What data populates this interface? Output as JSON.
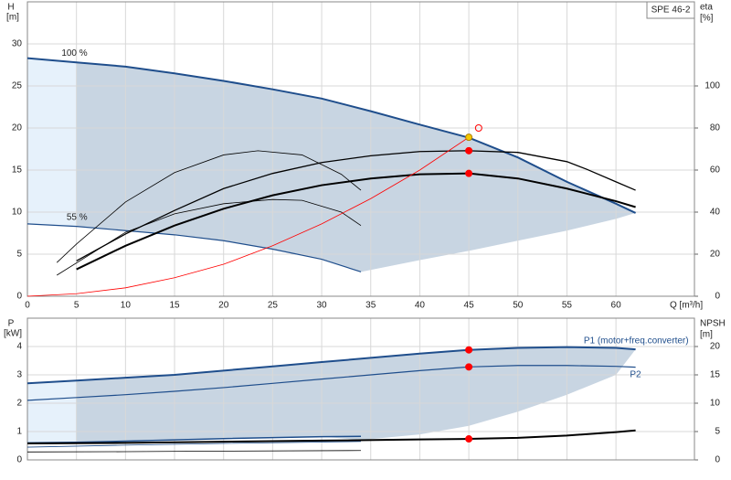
{
  "chart_data": [
    {
      "type": "line",
      "y_label": "H",
      "y_unit": "[m]",
      "y2_label": "eta",
      "y2_unit": "[%]",
      "x_label": "Q [m³/h]",
      "badge": "SPE 46-2",
      "xlim": [
        0,
        68
      ],
      "xticks": [
        0,
        5,
        10,
        15,
        20,
        25,
        30,
        35,
        40,
        45,
        50,
        55,
        60
      ],
      "xtick_labels": true,
      "ylim": [
        0,
        35
      ],
      "yticks": [
        0,
        5,
        10,
        15,
        20,
        25,
        30
      ],
      "y2lim": [
        0,
        140
      ],
      "y2ticks": [
        0,
        20,
        40,
        60,
        80,
        100
      ],
      "grid": true,
      "label_side": "start",
      "areas": [
        {
          "color": "#e6f1fb",
          "x": [
            0,
            5,
            5,
            0
          ],
          "values": [
            28.3,
            27.8,
            8.3,
            8.6
          ]
        },
        {
          "color": "#c8d5e2",
          "x": [
            5,
            10,
            15,
            20,
            25,
            30,
            35,
            40,
            45,
            50,
            55,
            60,
            62,
            60,
            55,
            50,
            45,
            40,
            34,
            30,
            25,
            20,
            15,
            10,
            5
          ],
          "values": [
            27.8,
            27.3,
            26.5,
            25.6,
            24.6,
            23.5,
            22.0,
            20.4,
            18.85,
            16.5,
            13.6,
            11.0,
            9.9,
            9.2,
            7.8,
            6.6,
            5.4,
            4.3,
            2.9,
            4.4,
            5.6,
            6.6,
            7.3,
            7.8,
            8.3
          ]
        }
      ],
      "series": [
        {
          "name": "100 %",
          "color": "#1f4e8c",
          "width": 2,
          "x": [
            0,
            5,
            10,
            15,
            20,
            25,
            30,
            35,
            40,
            45,
            50,
            55,
            60,
            62
          ],
          "values": [
            28.3,
            27.8,
            27.3,
            26.5,
            25.6,
            24.6,
            23.5,
            22.0,
            20.4,
            18.85,
            16.5,
            13.6,
            11.0,
            9.9
          ]
        },
        {
          "name": "55 %",
          "color": "#1f4e8c",
          "width": 1.2,
          "x": [
            0,
            5,
            10,
            15,
            20,
            25,
            30,
            34
          ],
          "values": [
            8.6,
            8.3,
            7.8,
            7.3,
            6.6,
            5.6,
            4.4,
            2.9
          ]
        },
        {
          "color": "#000000",
          "width": 2,
          "x": [
            5,
            10,
            15,
            20,
            25,
            30,
            35,
            40,
            45,
            50,
            55,
            60,
            62
          ],
          "values": [
            3.2,
            6.0,
            8.4,
            10.4,
            12.0,
            13.2,
            14.0,
            14.5,
            14.6,
            14.0,
            12.8,
            11.3,
            10.6
          ]
        },
        {
          "color": "#000000",
          "width": 1.3,
          "x": [
            5,
            10,
            15,
            20,
            25,
            30,
            35,
            40,
            45,
            50,
            55,
            57,
            60,
            62
          ],
          "values": [
            4.2,
            7.4,
            10.2,
            12.8,
            14.6,
            15.9,
            16.7,
            17.2,
            17.3,
            17.1,
            16.0,
            15.1,
            13.6,
            12.6
          ]
        },
        {
          "color": "#000000",
          "width": 0.8,
          "x": [
            3,
            10,
            15,
            20,
            25,
            28,
            32,
            34
          ],
          "values": [
            2.5,
            7.6,
            9.8,
            11.0,
            11.5,
            11.4,
            10.0,
            8.4
          ]
        },
        {
          "color": "#000000",
          "width": 0.8,
          "x": [
            3,
            5,
            10,
            15,
            20,
            23.5,
            28,
            32,
            34
          ],
          "values": [
            4.0,
            6.2,
            11.2,
            14.7,
            16.8,
            17.3,
            16.8,
            14.5,
            12.6
          ]
        },
        {
          "color": "#ff0000",
          "width": 0.8,
          "x": [
            0,
            5,
            10,
            15,
            20,
            25,
            30,
            35,
            40,
            45
          ],
          "values": [
            0,
            0.3,
            1.0,
            2.2,
            3.8,
            6.0,
            8.6,
            11.6,
            15.0,
            18.9
          ]
        }
      ],
      "markers": [
        {
          "x": 45,
          "value": 18.9,
          "color": "#f5c800",
          "hollow": false
        },
        {
          "x": 45,
          "value": 17.3,
          "color": "#ff0000",
          "hollow": false
        },
        {
          "x": 45,
          "value": 14.6,
          "color": "#ff0000",
          "hollow": false
        },
        {
          "x": 46,
          "value": 20.0,
          "color": "#ff0000",
          "hollow": true
        }
      ]
    },
    {
      "type": "line",
      "y_label": "P",
      "y_unit": "[kW]",
      "y2_label": "NPSH",
      "y2_unit": "[m]",
      "xlim": [
        0,
        68
      ],
      "xticks": [
        0,
        5,
        10,
        15,
        20,
        25,
        30,
        35,
        40,
        45,
        50,
        55,
        60
      ],
      "xtick_labels": false,
      "ylim": [
        0,
        5
      ],
      "yticks": [
        0,
        1,
        2,
        3,
        4
      ],
      "y2lim": [
        0,
        25
      ],
      "y2ticks": [
        0,
        5,
        10,
        15,
        20
      ],
      "grid": true,
      "label_side": "end",
      "areas": [
        {
          "color": "#e6f1fb",
          "x": [
            0,
            5,
            5,
            0
          ],
          "values": [
            2.7,
            2.8,
            0.62,
            0.6
          ]
        },
        {
          "color": "#c8d5e2",
          "x": [
            5,
            10,
            15,
            20,
            25,
            30,
            35,
            40,
            45,
            50,
            55,
            60,
            62,
            60,
            55,
            50,
            45,
            40,
            34,
            30,
            20,
            10,
            5
          ],
          "values": [
            2.8,
            2.9,
            3.0,
            3.15,
            3.3,
            3.45,
            3.6,
            3.75,
            3.88,
            3.95,
            3.98,
            3.95,
            3.9,
            3.0,
            2.3,
            1.7,
            1.2,
            0.9,
            0.7,
            0.82,
            0.75,
            0.65,
            0.62
          ]
        }
      ],
      "series": [
        {
          "name": "P1 (motor+freq.converter)",
          "color": "#1f4e8c",
          "width": 2,
          "x": [
            0,
            5,
            10,
            15,
            20,
            25,
            30,
            35,
            40,
            45,
            50,
            55,
            60,
            62
          ],
          "values": [
            2.7,
            2.8,
            2.9,
            3.0,
            3.15,
            3.3,
            3.45,
            3.6,
            3.75,
            3.88,
            3.95,
            3.98,
            3.95,
            3.9
          ]
        },
        {
          "name": "P2",
          "color": "#1f4e8c",
          "width": 1.2,
          "x": [
            0,
            5,
            10,
            15,
            20,
            25,
            30,
            35,
            40,
            45,
            50,
            55,
            60,
            62
          ],
          "values": [
            2.1,
            2.2,
            2.3,
            2.42,
            2.55,
            2.7,
            2.85,
            3.0,
            3.15,
            3.28,
            3.33,
            3.33,
            3.3,
            3.27
          ]
        },
        {
          "color": "#1f4e8c",
          "width": 1.5,
          "x": [
            0,
            5,
            10,
            20,
            30,
            34
          ],
          "values": [
            0.6,
            0.62,
            0.66,
            0.75,
            0.82,
            0.83
          ]
        },
        {
          "color": "#1f4e8c",
          "width": 0.8,
          "x": [
            0,
            10,
            20,
            34
          ],
          "values": [
            0.45,
            0.52,
            0.58,
            0.65
          ]
        },
        {
          "color": "#000000",
          "width": 0.8,
          "x": [
            0,
            10,
            20,
            34
          ],
          "values": [
            0.28,
            0.29,
            0.31,
            0.33
          ]
        },
        {
          "color": "#000000",
          "width": 2,
          "axis": "y2",
          "x": [
            0,
            10,
            20,
            30,
            40,
            45,
            50,
            55,
            60,
            62
          ],
          "values": [
            2.9,
            3.0,
            3.2,
            3.4,
            3.6,
            3.7,
            3.9,
            4.3,
            4.9,
            5.2
          ]
        }
      ],
      "markers": [
        {
          "x": 45,
          "value": 3.88,
          "color": "#ff0000",
          "hollow": false
        },
        {
          "x": 45,
          "value": 3.28,
          "color": "#ff0000",
          "hollow": false
        },
        {
          "x": 45,
          "value": 3.7,
          "color": "#ff0000",
          "hollow": false,
          "axis": "y2"
        }
      ]
    }
  ]
}
